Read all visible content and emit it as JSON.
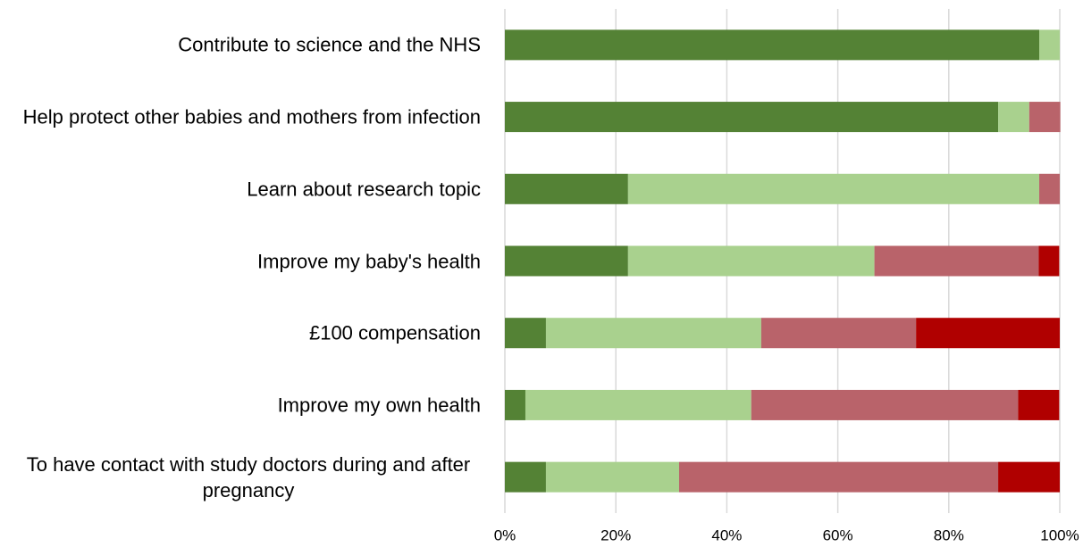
{
  "chart_data": {
    "type": "stacked-barh",
    "categories": [
      "Contribute to science and the NHS",
      "Help protect other babies and mothers from infection",
      "Learn about research topic",
      "Improve my baby's health",
      "£100 compensation",
      "Improve my own health",
      "To have contact with study doctors during and after pregnancy"
    ],
    "series": [
      {
        "color": "#548235",
        "values": [
          96.3,
          88.9,
          22.2,
          22.2,
          7.4,
          3.7,
          7.4
        ]
      },
      {
        "color": "#a9d18e",
        "values": [
          3.7,
          5.6,
          74.1,
          44.4,
          38.8,
          40.7,
          24.0
        ]
      },
      {
        "color": "#b9636a",
        "values": [
          0,
          5.6,
          3.7,
          29.6,
          27.9,
          48.1,
          57.5
        ]
      },
      {
        "color": "#b00000",
        "values": [
          0,
          0,
          0,
          3.7,
          25.9,
          7.4,
          11.1
        ]
      }
    ],
    "xlim": [
      0,
      100
    ],
    "xticks": [
      {
        "value": 0,
        "label": "0%"
      },
      {
        "value": 20,
        "label": "20%"
      },
      {
        "value": 40,
        "label": "40%"
      },
      {
        "value": 60,
        "label": "60%"
      },
      {
        "value": 80,
        "label": "80%"
      },
      {
        "value": 100,
        "label": "100%"
      }
    ],
    "grid": true
  }
}
